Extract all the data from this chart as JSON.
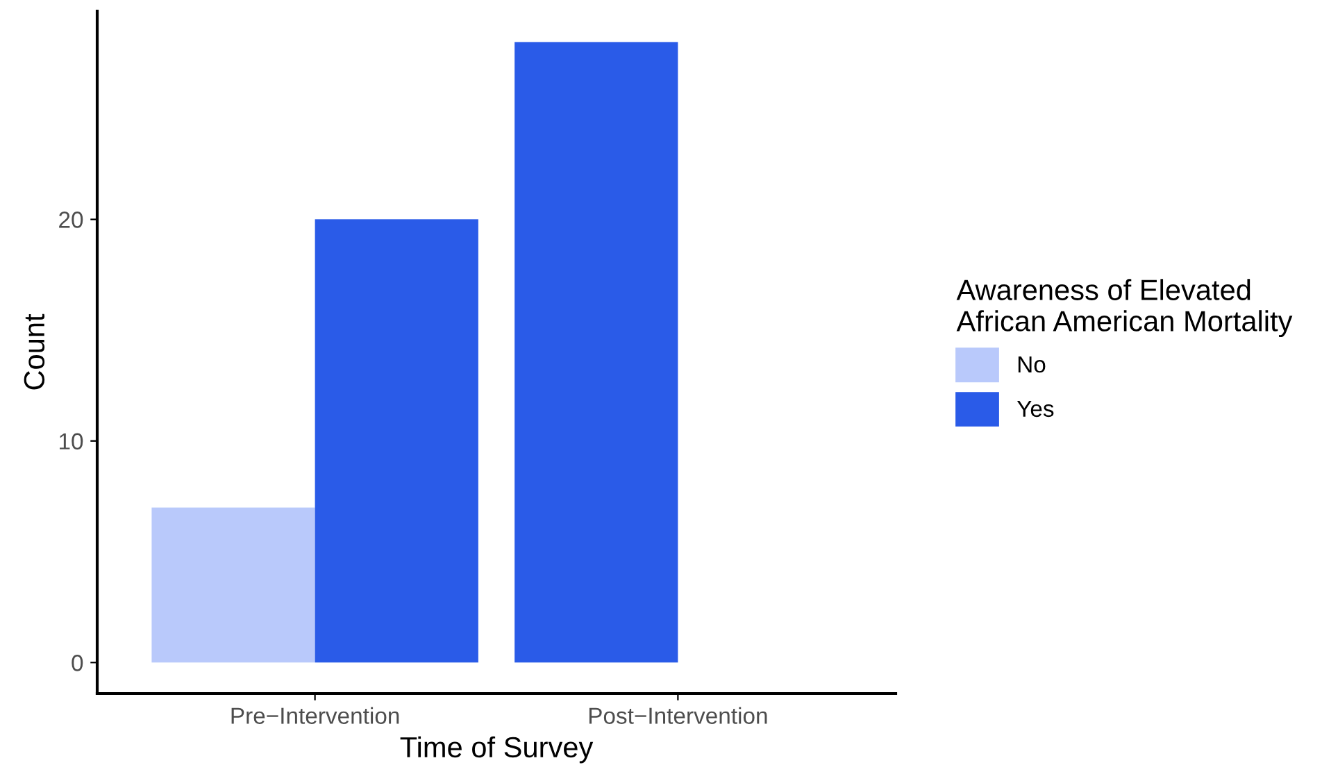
{
  "chart_data": {
    "type": "bar",
    "xlabel": "Time of Survey",
    "ylabel": "Count",
    "legend_title": "Awareness of Elevated\nAfrican American Mortality",
    "categories": [
      "Pre−Intervention",
      "Post−Intervention"
    ],
    "series": [
      {
        "name": "No",
        "color": "#b9c9fb",
        "values": [
          7,
          null
        ]
      },
      {
        "name": "Yes",
        "color": "#2a5be8",
        "values": [
          20,
          28
        ]
      }
    ],
    "ylim": [
      -1.4,
      29.4
    ],
    "yticks": [
      0,
      10,
      20
    ],
    "grid": false,
    "legend": "right"
  }
}
